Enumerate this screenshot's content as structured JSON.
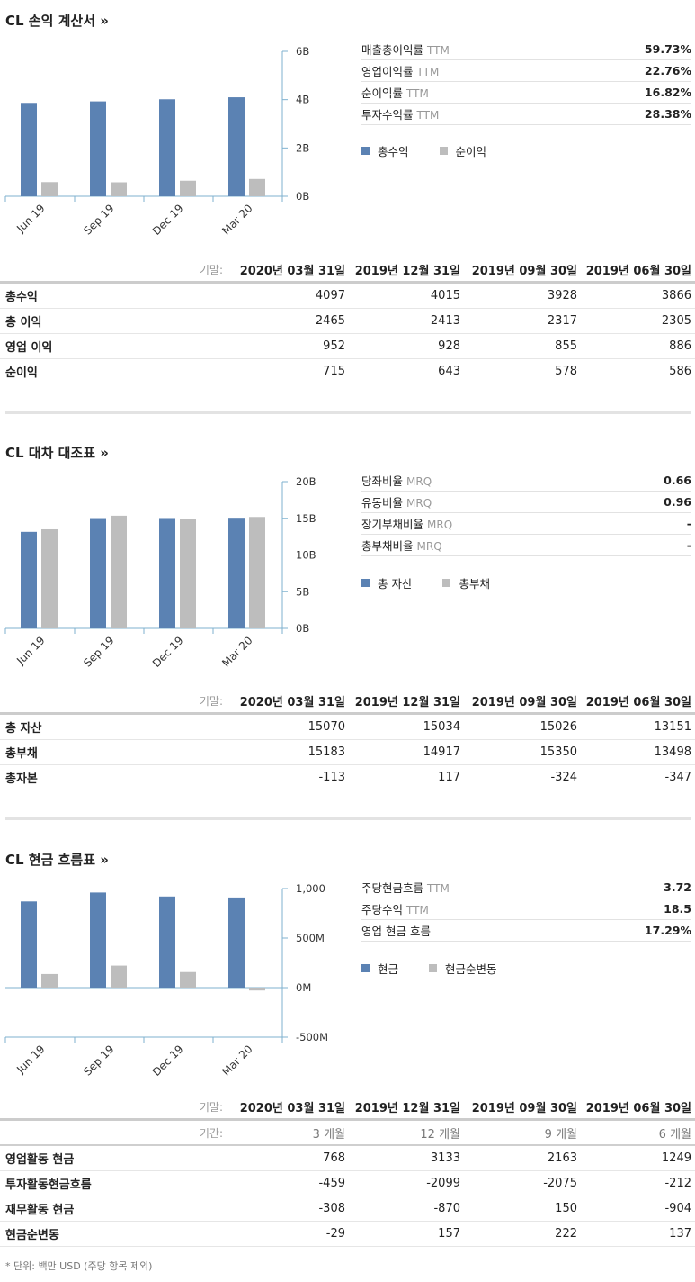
{
  "colors": {
    "primary": "#5b82b3",
    "secondary": "#bdbdbd",
    "axis": "#7fb2cf"
  },
  "sections": [
    {
      "title": "CL 손익 계산서 »",
      "ratios": [
        {
          "name": "매출총이익률",
          "suffix": "TTM",
          "value": "59.73%"
        },
        {
          "name": "영업이익률",
          "suffix": "TTM",
          "value": "22.76%"
        },
        {
          "name": "순이익률",
          "suffix": "TTM",
          "value": "16.82%"
        },
        {
          "name": "투자수익률",
          "suffix": "TTM",
          "value": "28.38%"
        }
      ],
      "legend": [
        "총수익",
        "순이익"
      ],
      "table": {
        "date_label": "기말:",
        "dates": [
          "2020년 03월 31일",
          "2019년 12월 31일",
          "2019년 09월 30일",
          "2019년 06월 30일"
        ],
        "rows": [
          {
            "name": "총수익",
            "values": [
              "4097",
              "4015",
              "3928",
              "3866"
            ]
          },
          {
            "name": "총 이익",
            "values": [
              "2465",
              "2413",
              "2317",
              "2305"
            ]
          },
          {
            "name": "영업 이익",
            "values": [
              "952",
              "928",
              "855",
              "886"
            ]
          },
          {
            "name": "순이익",
            "values": [
              "715",
              "643",
              "578",
              "586"
            ]
          }
        ]
      }
    },
    {
      "title": "CL 대차 대조표 »",
      "ratios": [
        {
          "name": "당좌비율",
          "suffix": "MRQ",
          "value": "0.66"
        },
        {
          "name": "유동비율",
          "suffix": "MRQ",
          "value": "0.96"
        },
        {
          "name": "장기부채비율",
          "suffix": "MRQ",
          "value": "-"
        },
        {
          "name": "총부채비율",
          "suffix": "MRQ",
          "value": "-"
        }
      ],
      "legend": [
        "총 자산",
        "총부채"
      ],
      "table": {
        "date_label": "기말:",
        "dates": [
          "2020년 03월 31일",
          "2019년 12월 31일",
          "2019년 09월 30일",
          "2019년 06월 30일"
        ],
        "rows": [
          {
            "name": "총 자산",
            "values": [
              "15070",
              "15034",
              "15026",
              "13151"
            ]
          },
          {
            "name": "총부채",
            "values": [
              "15183",
              "14917",
              "15350",
              "13498"
            ]
          },
          {
            "name": "총자본",
            "values": [
              "-113",
              "117",
              "-324",
              "-347"
            ]
          }
        ]
      }
    },
    {
      "title": "CL 현금 흐름표 »",
      "ratios": [
        {
          "name": "주당현금흐름",
          "suffix": "TTM",
          "value": "3.72"
        },
        {
          "name": "주당수익",
          "suffix": "TTM",
          "value": "18.5"
        },
        {
          "name": "영업 현금 흐름",
          "suffix": "",
          "value": "17.29%"
        }
      ],
      "legend": [
        "현금",
        "현금순변동"
      ],
      "table": {
        "date_label": "기말:",
        "period_label": "기간:",
        "dates": [
          "2020년 03월 31일",
          "2019년 12월 31일",
          "2019년 09월 30일",
          "2019년 06월 30일"
        ],
        "periods": [
          "3 개월",
          "12 개월",
          "9 개월",
          "6 개월"
        ],
        "rows": [
          {
            "name": "영업활동 현금",
            "values": [
              "768",
              "3133",
              "2163",
              "1249"
            ]
          },
          {
            "name": "투자활동현금흐름",
            "values": [
              "-459",
              "-2099",
              "-2075",
              "-212"
            ]
          },
          {
            "name": "재무활동 현금",
            "values": [
              "-308",
              "-870",
              "150",
              "-904"
            ]
          },
          {
            "name": "현금순변동",
            "values": [
              "-29",
              "157",
              "222",
              "137"
            ]
          }
        ]
      }
    }
  ],
  "footnote": "* 단위: 백만 USD (주당 항목 제외)",
  "chart_data": [
    {
      "type": "bar",
      "categories": [
        "Jun 19",
        "Sep 19",
        "Dec 19",
        "Mar 20"
      ],
      "series": [
        {
          "name": "총수익",
          "values": [
            3866,
            3928,
            4015,
            4097
          ]
        },
        {
          "name": "순이익",
          "values": [
            586,
            578,
            643,
            715
          ]
        }
      ],
      "yticks": [
        0,
        2000,
        4000,
        6000
      ],
      "ytick_labels": [
        "0B",
        "2B",
        "4B",
        "6B"
      ],
      "ylim": [
        0,
        6000
      ],
      "legend": "right",
      "grid": false
    },
    {
      "type": "bar",
      "categories": [
        "Jun 19",
        "Sep 19",
        "Dec 19",
        "Mar 20"
      ],
      "series": [
        {
          "name": "총 자산",
          "values": [
            13151,
            15026,
            15034,
            15070
          ]
        },
        {
          "name": "총부채",
          "values": [
            13498,
            15350,
            14917,
            15183
          ]
        }
      ],
      "yticks": [
        0,
        5000,
        10000,
        15000,
        20000
      ],
      "ytick_labels": [
        "0B",
        "5B",
        "10B",
        "15B",
        "20B"
      ],
      "ylim": [
        0,
        20000
      ],
      "legend": "right",
      "grid": false
    },
    {
      "type": "bar",
      "categories": [
        "Jun 19",
        "Sep 19",
        "Dec 19",
        "Mar 20"
      ],
      "series": [
        {
          "name": "현금",
          "values": [
            870,
            960,
            920,
            910
          ]
        },
        {
          "name": "현금순변동",
          "values": [
            137,
            222,
            157,
            -29
          ]
        }
      ],
      "yticks": [
        -500,
        0,
        500,
        1000
      ],
      "ytick_labels": [
        "-500M",
        "0M",
        "500M",
        "1,000"
      ],
      "ylim": [
        -500,
        1000
      ],
      "legend": "right",
      "grid": false
    }
  ]
}
